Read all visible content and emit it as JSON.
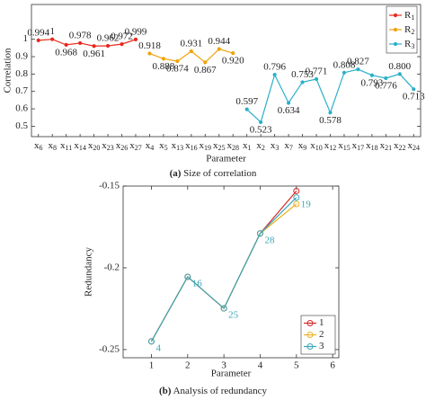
{
  "chart_data": [
    {
      "type": "line",
      "caption_tag": "(a)",
      "caption": "Size of correlation",
      "xlabel": "Parameter",
      "ylabel": "Correlation",
      "categories": [
        "x6",
        "x8",
        "x11",
        "x14",
        "x20",
        "x23",
        "x26",
        "x27",
        "x4",
        "x5",
        "x13",
        "x16",
        "x19",
        "x25",
        "x28",
        "x1",
        "x2",
        "x3",
        "x7",
        "x9",
        "x10",
        "x12",
        "x15",
        "x17",
        "x18",
        "x21",
        "x22",
        "x24"
      ],
      "ylim": [
        0.44,
        1.2
      ],
      "yticks": [
        0.5,
        0.6,
        0.7,
        0.8,
        0.9,
        1
      ],
      "legend": "upper right",
      "series": [
        {
          "name": "R1",
          "color": "#e8291c",
          "values": [
            0.994,
            1,
            0.968,
            0.978,
            0.961,
            0.962,
            0.972,
            0.999,
            null,
            null,
            null,
            null,
            null,
            null,
            null,
            null,
            null,
            null,
            null,
            null,
            null,
            null,
            null,
            null,
            null,
            null,
            null,
            null
          ],
          "value_labels": [
            "0.994",
            "1",
            "0.968",
            "0.978",
            "0.961",
            "0.962",
            "0.972",
            "0.999",
            null,
            null,
            null,
            null,
            null,
            null,
            null,
            null,
            null,
            null,
            null,
            null,
            null,
            null,
            null,
            null,
            null,
            null,
            null,
            null
          ]
        },
        {
          "name": "R2",
          "color": "#f0a30a",
          "values": [
            null,
            null,
            null,
            null,
            null,
            null,
            null,
            null,
            0.918,
            0.888,
            0.874,
            0.931,
            0.867,
            0.944,
            0.92,
            null,
            null,
            null,
            null,
            null,
            null,
            null,
            null,
            null,
            null,
            null,
            null,
            null
          ],
          "value_labels": [
            null,
            null,
            null,
            null,
            null,
            null,
            null,
            null,
            "0.918",
            "0.888",
            "0.874",
            "0.931",
            "0.867",
            "0.944",
            "0.920",
            null,
            null,
            null,
            null,
            null,
            null,
            null,
            null,
            null,
            null,
            null,
            null,
            null
          ]
        },
        {
          "name": "R3",
          "color": "#2ab0c8",
          "values": [
            null,
            null,
            null,
            null,
            null,
            null,
            null,
            null,
            null,
            null,
            null,
            null,
            null,
            null,
            null,
            0.597,
            0.523,
            0.796,
            0.634,
            0.753,
            0.771,
            0.578,
            0.808,
            0.827,
            0.793,
            0.776,
            0.8,
            0.713
          ],
          "value_labels": [
            null,
            null,
            null,
            null,
            null,
            null,
            null,
            null,
            null,
            null,
            null,
            null,
            null,
            null,
            null,
            "0.597",
            "0.523",
            "0.796",
            "0.634",
            "0.753",
            "0.771",
            "0.578",
            "0.808",
            "0.827",
            "0.793",
            "0.776",
            "0.800",
            "0.713"
          ]
        }
      ]
    },
    {
      "type": "line",
      "caption_tag": "(b)",
      "caption": "Analysis of redundancy",
      "xlabel": "Parameter",
      "ylabel": "Redundancy",
      "x": [
        1,
        2,
        3,
        4,
        5
      ],
      "xlim": [
        0.22,
        6.17
      ],
      "xticks": [
        1,
        2,
        3,
        4,
        5,
        6
      ],
      "ylim": [
        -0.255,
        -0.15
      ],
      "yticks": [
        -0.25,
        -0.2,
        -0.15
      ],
      "legend": "lower right",
      "point_labels": [
        "4",
        "16",
        "25",
        "28",
        "19"
      ],
      "series": [
        {
          "name": "1",
          "color": "#d62728",
          "values": [
            -0.245,
            -0.2055,
            -0.2248,
            -0.179,
            -0.153
          ]
        },
        {
          "name": "2",
          "color": "#edb120",
          "values": [
            -0.245,
            -0.2055,
            -0.2248,
            -0.179,
            -0.161
          ]
        },
        {
          "name": "3",
          "color": "#3aa6b9",
          "values": [
            -0.245,
            -0.2055,
            -0.2248,
            -0.179,
            -0.157
          ]
        }
      ]
    }
  ]
}
